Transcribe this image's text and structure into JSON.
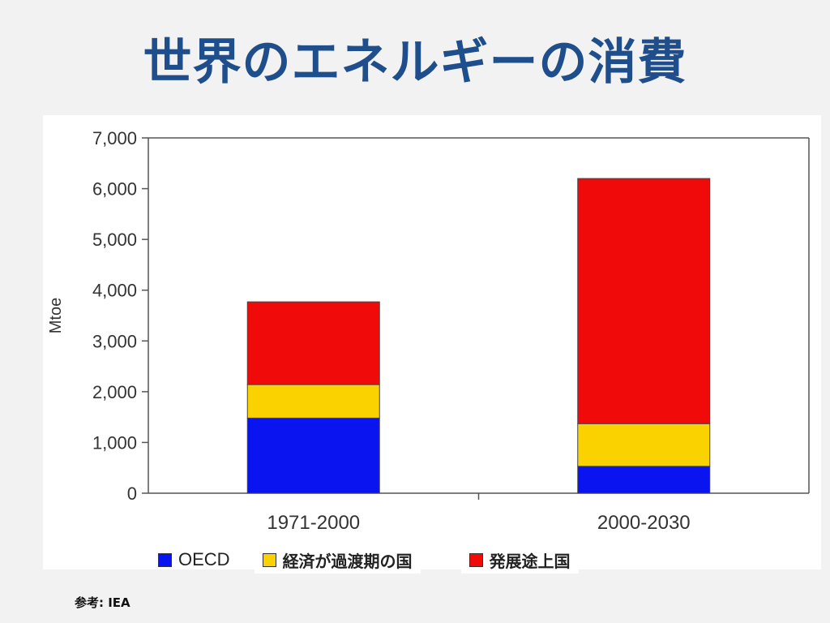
{
  "title": "世界のエネルギーの消費",
  "source": "参考: IEA",
  "colors": {
    "title": "#1f4e8c",
    "oecd": "#0a14f0",
    "transition": "#fad200",
    "developing": "#f00a0a",
    "axis": "#555555"
  },
  "chart_data": {
    "type": "bar",
    "stacked": true,
    "categories": [
      "1971-2000",
      "2000-2030"
    ],
    "ylabel": "Mtoe",
    "ylim": [
      0,
      7000
    ],
    "yticks": [
      "0",
      "1,000",
      "2,000",
      "3,000",
      "4,000",
      "5,000",
      "6,000",
      "7,000"
    ],
    "ytick_values": [
      0,
      1000,
      2000,
      3000,
      4000,
      5000,
      6000,
      7000
    ],
    "grid": false,
    "legend_position": "bottom",
    "series": [
      {
        "name": "OECD",
        "values": [
          1480,
          530
        ]
      },
      {
        "name": "経済が過渡期の国",
        "values": [
          660,
          840
        ]
      },
      {
        "name": "発展途上国",
        "values": [
          1630,
          4830
        ]
      }
    ]
  }
}
